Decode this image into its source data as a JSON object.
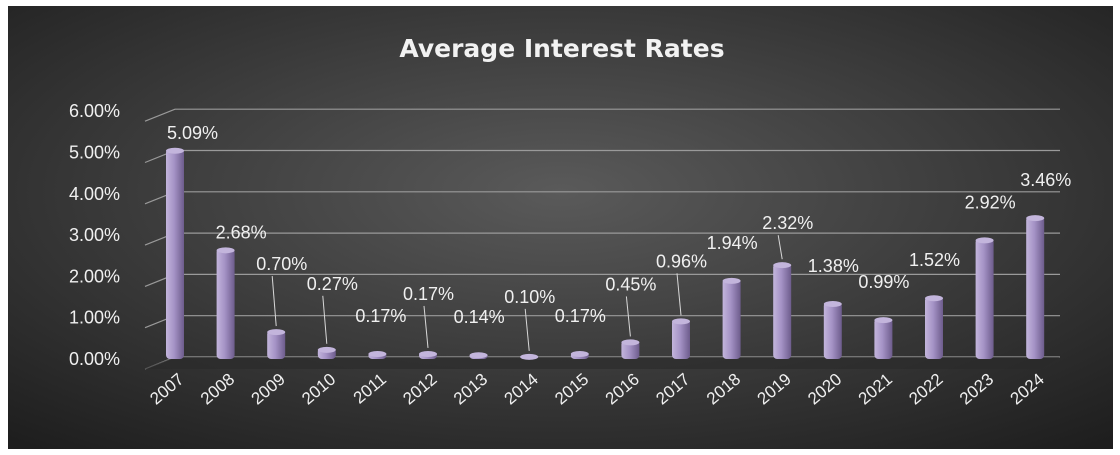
{
  "chart_data": {
    "type": "bar",
    "title": "Average Interest Rates",
    "categories": [
      "2007",
      "2008",
      "2009",
      "2010",
      "2011",
      "2012",
      "2013",
      "2014",
      "2015",
      "2016",
      "2017",
      "2018",
      "2019",
      "2020",
      "2021",
      "2022",
      "2023",
      "2024"
    ],
    "values": [
      5.09,
      2.68,
      0.7,
      0.27,
      0.17,
      0.17,
      0.14,
      0.1,
      0.17,
      0.45,
      0.96,
      1.94,
      2.32,
      1.38,
      0.99,
      1.52,
      2.92,
      3.46
    ],
    "data_labels": [
      "5.09%",
      "2.68%",
      "0.70%",
      "0.27%",
      "0.17%",
      "0.17%",
      "0.14%",
      "0.10%",
      "0.17%",
      "0.45%",
      "0.96%",
      "1.94%",
      "2.32%",
      "1.38%",
      "0.99%",
      "1.52%",
      "2.92%",
      "3.46%"
    ],
    "yticks": [
      "0.00%",
      "1.00%",
      "2.00%",
      "3.00%",
      "4.00%",
      "5.00%",
      "6.00%"
    ],
    "ylim": [
      0,
      6
    ],
    "xlabel": "",
    "ylabel": "",
    "grid": true,
    "legend": "none",
    "colors": {
      "bar": "#a593c6",
      "bar_light": "#c3b5dc",
      "bar_dark": "#6d5c8c",
      "background_center": "#5a5a5a",
      "background_edge": "#1e1e1e",
      "text": "#f0f0f0",
      "gridline": "#9a9a9a"
    }
  }
}
